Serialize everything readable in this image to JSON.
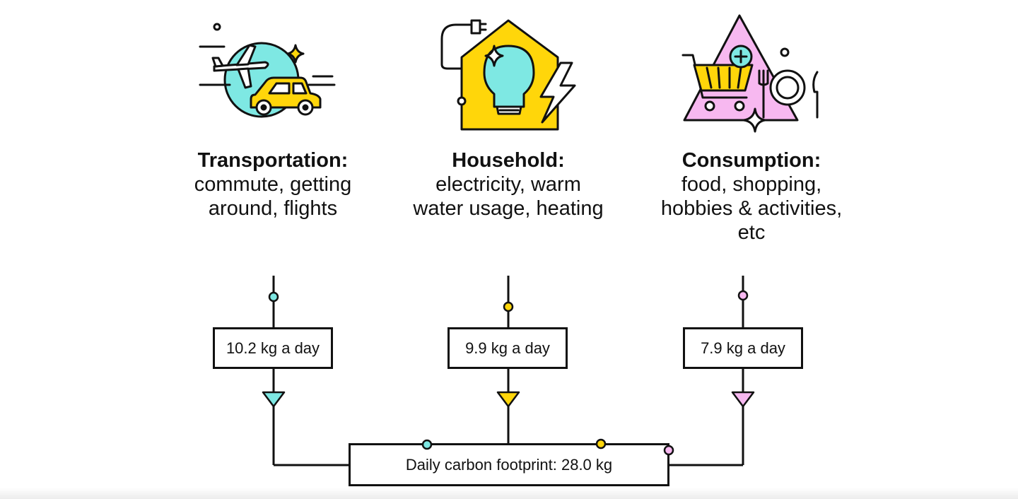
{
  "categories": [
    {
      "key": "transportation",
      "title": "Transportation:",
      "description": [
        "commute, getting",
        "around, flights"
      ],
      "value_label": "10.2 kg a day",
      "value_kg": 10.2,
      "color": "#7ee8e3"
    },
    {
      "key": "household",
      "title": "Household:",
      "description": [
        "electricity, warm",
        "water usage, heating"
      ],
      "value_label": "9.9 kg a day",
      "value_kg": 9.9,
      "color": "#ffd60a"
    },
    {
      "key": "consumption",
      "title": "Consumption:",
      "description": [
        "food, shopping,",
        "hobbies & activities,",
        "etc"
      ],
      "value_label": "7.9 kg a day",
      "value_kg": 7.9,
      "color": "#f7b8f0"
    }
  ],
  "total": {
    "label": "Daily carbon footprint: 28.0 kg",
    "value_kg": 28.0
  },
  "icons": [
    "transport-icon",
    "household-icon",
    "consumption-icon"
  ]
}
